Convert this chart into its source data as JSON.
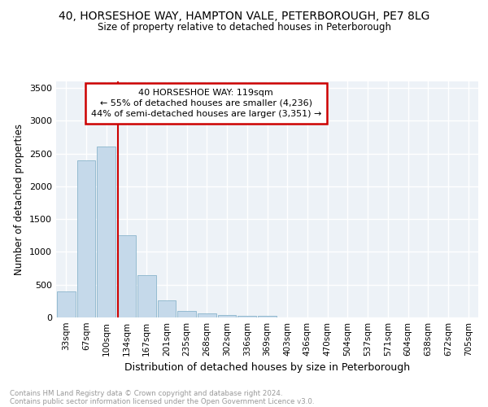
{
  "title": "40, HORSESHOE WAY, HAMPTON VALE, PETERBOROUGH, PE7 8LG",
  "subtitle": "Size of property relative to detached houses in Peterborough",
  "xlabel": "Distribution of detached houses by size in Peterborough",
  "ylabel": "Number of detached properties",
  "categories": [
    "33sqm",
    "67sqm",
    "100sqm",
    "134sqm",
    "167sqm",
    "201sqm",
    "235sqm",
    "268sqm",
    "302sqm",
    "336sqm",
    "369sqm",
    "403sqm",
    "436sqm",
    "470sqm",
    "504sqm",
    "537sqm",
    "571sqm",
    "604sqm",
    "638sqm",
    "672sqm",
    "705sqm"
  ],
  "values": [
    400,
    2390,
    2610,
    1250,
    640,
    255,
    100,
    60,
    40,
    25,
    25,
    0,
    0,
    0,
    0,
    0,
    0,
    0,
    0,
    0,
    0
  ],
  "bar_color": "#c5d9ea",
  "bar_edge_color": "#8ab4cc",
  "vline_color": "#cc0000",
  "annotation_line1": "40 HORSESHOE WAY: 119sqm",
  "annotation_line2": "← 55% of detached houses are smaller (4,236)",
  "annotation_line3": "44% of semi-detached houses are larger (3,351) →",
  "annotation_box_color": "#cc0000",
  "ylim": [
    0,
    3600
  ],
  "yticks": [
    0,
    500,
    1000,
    1500,
    2000,
    2500,
    3000,
    3500
  ],
  "bg_color": "#edf2f7",
  "grid_color": "#ffffff",
  "footer_line1": "Contains HM Land Registry data © Crown copyright and database right 2024.",
  "footer_line2": "Contains public sector information licensed under the Open Government Licence v3.0."
}
